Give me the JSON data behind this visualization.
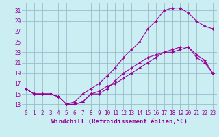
{
  "xlabel": "Windchill (Refroidissement éolien,°C)",
  "ylabel": "",
  "bg_color": "#cbeef3",
  "grid_color": "#99bbcc",
  "line_color": "#990099",
  "xlim": [
    -0.5,
    23.5
  ],
  "ylim": [
    12,
    32.5
  ],
  "xticks": [
    0,
    1,
    2,
    3,
    4,
    5,
    6,
    7,
    8,
    9,
    10,
    11,
    12,
    13,
    14,
    15,
    16,
    17,
    18,
    19,
    20,
    21,
    22,
    23
  ],
  "yticks": [
    13,
    15,
    17,
    19,
    21,
    23,
    25,
    27,
    29,
    31
  ],
  "line1_x": [
    0,
    1,
    2,
    3,
    4,
    5,
    6,
    7,
    8,
    9,
    10,
    11,
    12,
    13,
    14,
    15,
    16,
    17,
    18,
    19,
    20,
    21,
    22,
    23
  ],
  "line1_y": [
    16,
    15,
    15,
    15,
    14.5,
    13,
    13,
    13.5,
    15,
    15.5,
    16.5,
    17,
    18,
    19,
    20,
    21,
    22,
    23,
    23.5,
    24,
    24,
    22.5,
    21.5,
    19
  ],
  "line2_x": [
    0,
    1,
    2,
    3,
    4,
    5,
    6,
    7,
    8,
    9,
    10,
    11,
    12,
    13,
    14,
    15,
    16,
    17,
    18,
    19,
    20,
    21,
    22,
    23
  ],
  "line2_y": [
    16,
    15,
    15,
    15,
    14.5,
    13,
    13.5,
    15,
    16,
    17,
    18.5,
    20,
    22,
    23.5,
    25,
    27.5,
    29,
    31,
    31.5,
    31.5,
    30.5,
    29,
    28,
    27.5
  ],
  "line3_x": [
    0,
    1,
    2,
    3,
    4,
    5,
    6,
    7,
    8,
    9,
    10,
    11,
    12,
    13,
    14,
    15,
    16,
    17,
    18,
    19,
    20,
    21,
    22,
    23
  ],
  "line3_y": [
    16,
    15,
    15,
    15,
    14.5,
    13,
    13,
    13.5,
    15,
    15,
    16,
    17.5,
    19,
    20,
    21,
    22,
    22.5,
    23,
    23,
    23.5,
    24,
    22,
    21,
    19
  ],
  "font_family": "monospace",
  "tick_fontsize": 5.5,
  "xlabel_fontsize": 6.5
}
